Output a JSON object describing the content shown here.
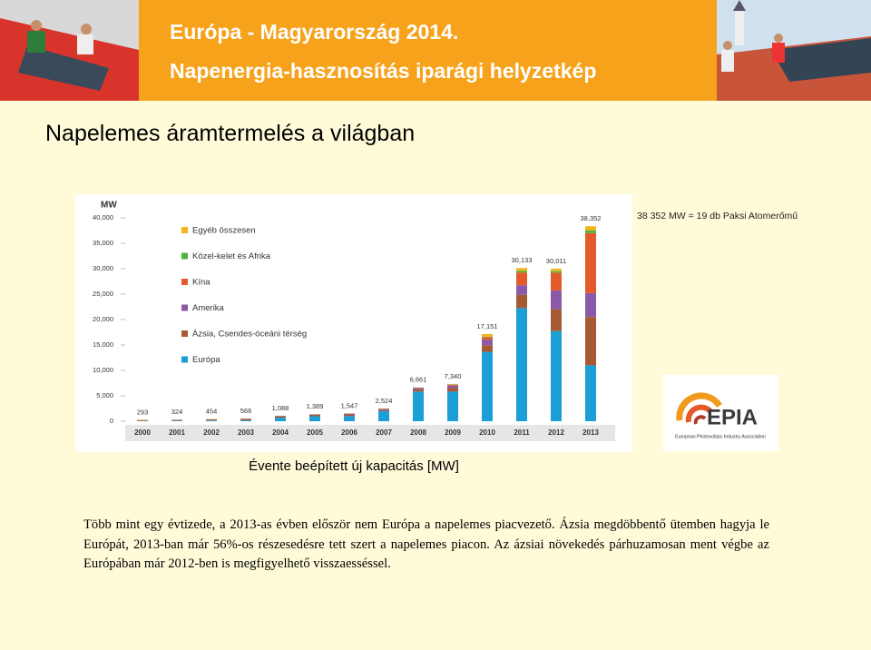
{
  "header": {
    "line1": "Európa - Magyarország 2014.",
    "line2": "Napenergia-hasznosítás iparági helyzetkép"
  },
  "slide_title": "Napelemes áramtermelés a világban",
  "note": "38 352 MW = 19 db Paksi Atomerőmű",
  "logo": {
    "name": "EPIA",
    "subtitle": "European Photovoltaic Industry Association"
  },
  "caption": "Évente beépített új kapacitás [MW]",
  "paragraph": "Több mint egy évtizede, a 2013-as évben először nem Európa a napelemes piacvezető. Ázsia megdöbbentő ütemben hagyja le Európát, 2013-ban már 56%-os részesedésre tett szert a napelemes piacon. Az ázsiai növekedés párhuzamosan ment végbe az Európában már 2012-ben is megfigyelhető visszaesséssel.",
  "chart_data": {
    "type": "stacked_bar",
    "y_label": "MW",
    "categories": [
      "2000",
      "2001",
      "2002",
      "2003",
      "2004",
      "2005",
      "2006",
      "2007",
      "2008",
      "2009",
      "2010",
      "2011",
      "2012",
      "2013"
    ],
    "series": [
      {
        "name": "Európa",
        "color": "#1b9fd6",
        "values": [
          58,
          134,
          138,
          201,
          703,
          984,
          1004,
          2006,
          5832,
          5833,
          13651,
          22259,
          17726,
          11000
        ]
      },
      {
        "name": "Ázsia, Csendes-óceáni térség",
        "color": "#a65a32",
        "values": [
          130,
          120,
          190,
          230,
          270,
          290,
          330,
          240,
          440,
          690,
          1300,
          2600,
          4300,
          9500
        ]
      },
      {
        "name": "Amerika",
        "color": "#8a5aa8",
        "values": [
          25,
          30,
          45,
          65,
          70,
          80,
          150,
          190,
          290,
          500,
          1100,
          1900,
          3700,
          4700
        ]
      },
      {
        "name": "Kína",
        "color": "#e55a2b",
        "values": [
          20,
          10,
          20,
          10,
          10,
          5,
          13,
          20,
          40,
          160,
          500,
          2500,
          3500,
          11800
        ]
      },
      {
        "name": "Közel-kelet és Afrika",
        "color": "#4fb34a",
        "values": [
          20,
          10,
          21,
          20,
          15,
          10,
          20,
          28,
          19,
          57,
          100,
          300,
          300,
          500
        ]
      },
      {
        "name": "Egyéb összesen",
        "color": "#f2b51c",
        "values": [
          40,
          20,
          40,
          40,
          20,
          20,
          30,
          40,
          40,
          100,
          500,
          574,
          485,
          852
        ]
      }
    ],
    "totals": [
      293,
      324,
      454,
      566,
      1088,
      1389,
      1547,
      2524,
      6661,
      7340,
      17151,
      30133,
      30011,
      38352
    ],
    "total_labels": [
      "293",
      "324",
      "454",
      "566",
      "1,088",
      "1,389",
      "1,547",
      "2,524",
      "6,661",
      "7,340",
      "17,151",
      "30,133",
      "30,011",
      "38,352"
    ],
    "ylim": [
      0,
      40000
    ],
    "yticks": [
      0,
      {
        "value": 5000,
        "label": "5,000"
      },
      {
        "value": 10000,
        "label": "10,000"
      },
      {
        "value": 15000,
        "label": "15,000"
      },
      {
        "value": 20000,
        "label": "20,000"
      },
      {
        "value": 25000,
        "label": "25,000"
      },
      {
        "value": 30000,
        "label": "30,000"
      },
      {
        "value": 35000,
        "label": "35,000"
      },
      {
        "value": 40000,
        "label": "40,000"
      }
    ],
    "legend": "top-left"
  }
}
